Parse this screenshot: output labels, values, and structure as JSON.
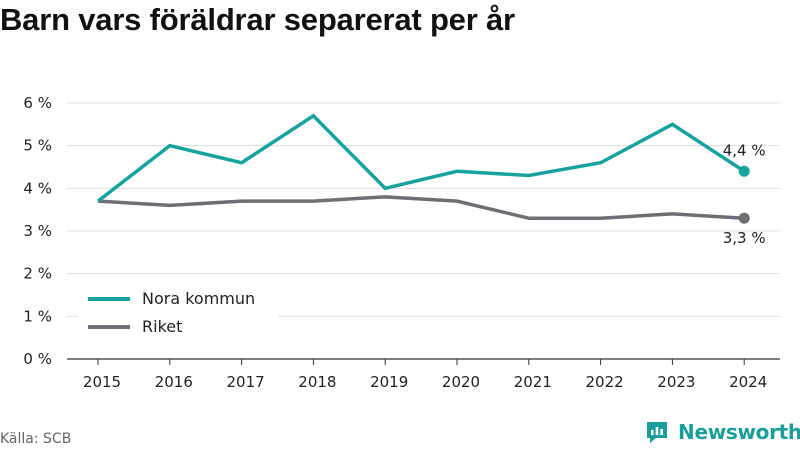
{
  "title": "Barn vars föräldrar separerat per år",
  "source": "Källa: SCB",
  "brand": {
    "name": "Newsworthy",
    "icon": "newsworthy-logo-icon",
    "color": "#1a9e99"
  },
  "chart_data": {
    "type": "line",
    "title": "Barn vars föräldrar separerat per år",
    "xlabel": "",
    "ylabel": "",
    "categories": [
      "2015",
      "2016",
      "2017",
      "2018",
      "2019",
      "2020",
      "2021",
      "2022",
      "2023",
      "2024"
    ],
    "ylim": [
      0,
      6
    ],
    "yticks": [
      0,
      1,
      2,
      3,
      4,
      5,
      6
    ],
    "ytick_labels": [
      "0 %",
      "1 %",
      "2 %",
      "3 %",
      "4 %",
      "5 %",
      "6 %"
    ],
    "grid": true,
    "legend_position": "bottom-left",
    "series": [
      {
        "name": "Nora kommun",
        "color": "#16a39e",
        "values": [
          3.7,
          5.0,
          4.6,
          5.7,
          4.0,
          4.4,
          4.3,
          4.6,
          5.5,
          4.4
        ],
        "end_label": "4,4 %"
      },
      {
        "name": "Riket",
        "color": "#6f6e74",
        "values": [
          3.7,
          3.6,
          3.7,
          3.7,
          3.8,
          3.7,
          3.3,
          3.3,
          3.4,
          3.3
        ],
        "end_label": "3,3 %"
      }
    ]
  }
}
